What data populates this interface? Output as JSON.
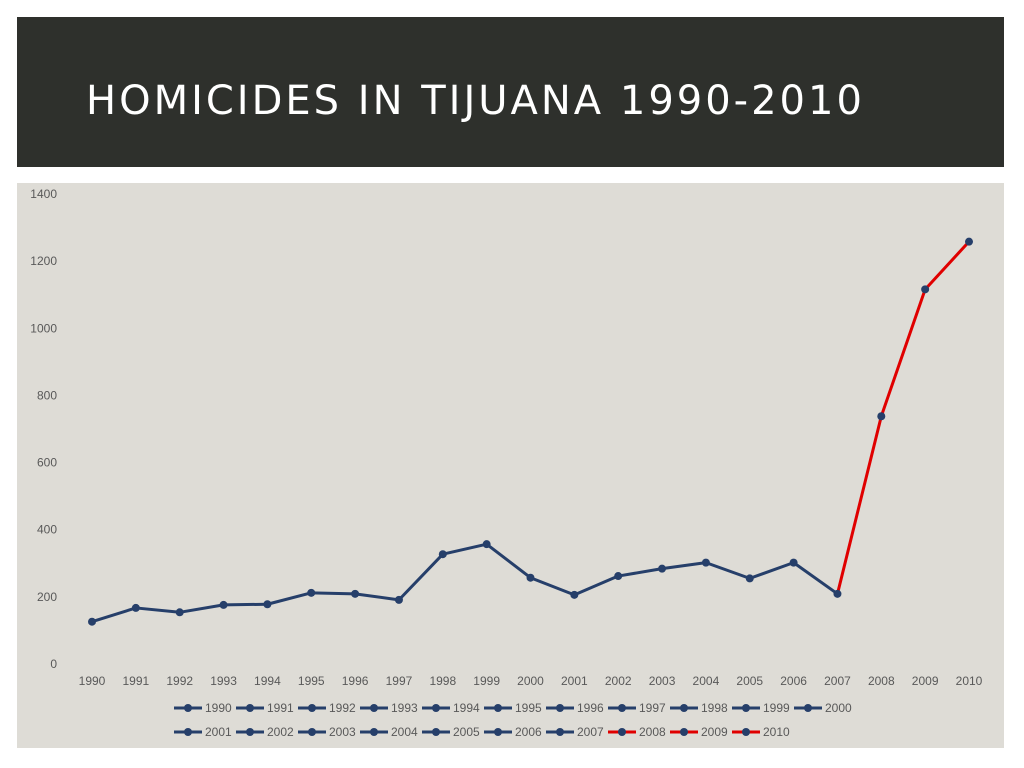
{
  "slide": {
    "title": "HOMICIDES IN TIJUANA 1990-2010"
  },
  "colors": {
    "header_bg": "#2e302c",
    "panel_bg": "#dedcd6",
    "series_blue": "#263f6a",
    "series_red": "#e00000"
  },
  "chart_data": {
    "type": "line",
    "title": "",
    "xlabel": "",
    "ylabel": "",
    "ylim": [
      0,
      1400
    ],
    "yticks": [
      0,
      200,
      400,
      600,
      800,
      1000,
      1200,
      1400
    ],
    "categories": [
      "1990",
      "1991",
      "1992",
      "1993",
      "1994",
      "1995",
      "1996",
      "1997",
      "1998",
      "1999",
      "2000",
      "2001",
      "2002",
      "2003",
      "2004",
      "2005",
      "2006",
      "2007",
      "2008",
      "2009",
      "2010"
    ],
    "values": [
      126,
      167,
      154,
      176,
      178,
      212,
      209,
      191,
      327,
      357,
      257,
      206,
      262,
      284,
      302,
      255,
      302,
      209,
      738,
      1116,
      1258
    ],
    "segment_colors": [
      "#263f6a",
      "#263f6a",
      "#263f6a",
      "#263f6a",
      "#263f6a",
      "#263f6a",
      "#263f6a",
      "#263f6a",
      "#263f6a",
      "#263f6a",
      "#263f6a",
      "#263f6a",
      "#263f6a",
      "#263f6a",
      "#263f6a",
      "#263f6a",
      "#263f6a",
      "#e00000",
      "#e00000",
      "#e00000"
    ],
    "grid": false,
    "legend": {
      "placement": "bottom",
      "entries": [
        {
          "label": "1990",
          "color": "#263f6a"
        },
        {
          "label": "1991",
          "color": "#263f6a"
        },
        {
          "label": "1992",
          "color": "#263f6a"
        },
        {
          "label": "1993",
          "color": "#263f6a"
        },
        {
          "label": "1994",
          "color": "#263f6a"
        },
        {
          "label": "1995",
          "color": "#263f6a"
        },
        {
          "label": "1996",
          "color": "#263f6a"
        },
        {
          "label": "1997",
          "color": "#263f6a"
        },
        {
          "label": "1998",
          "color": "#263f6a"
        },
        {
          "label": "1999",
          "color": "#263f6a"
        },
        {
          "label": "2000",
          "color": "#263f6a"
        },
        {
          "label": "2001",
          "color": "#263f6a"
        },
        {
          "label": "2002",
          "color": "#263f6a"
        },
        {
          "label": "2003",
          "color": "#263f6a"
        },
        {
          "label": "2004",
          "color": "#263f6a"
        },
        {
          "label": "2005",
          "color": "#263f6a"
        },
        {
          "label": "2006",
          "color": "#263f6a"
        },
        {
          "label": "2007",
          "color": "#263f6a"
        },
        {
          "label": "2008",
          "color": "#e00000"
        },
        {
          "label": "2009",
          "color": "#e00000"
        },
        {
          "label": "2010",
          "color": "#e00000"
        }
      ]
    }
  }
}
